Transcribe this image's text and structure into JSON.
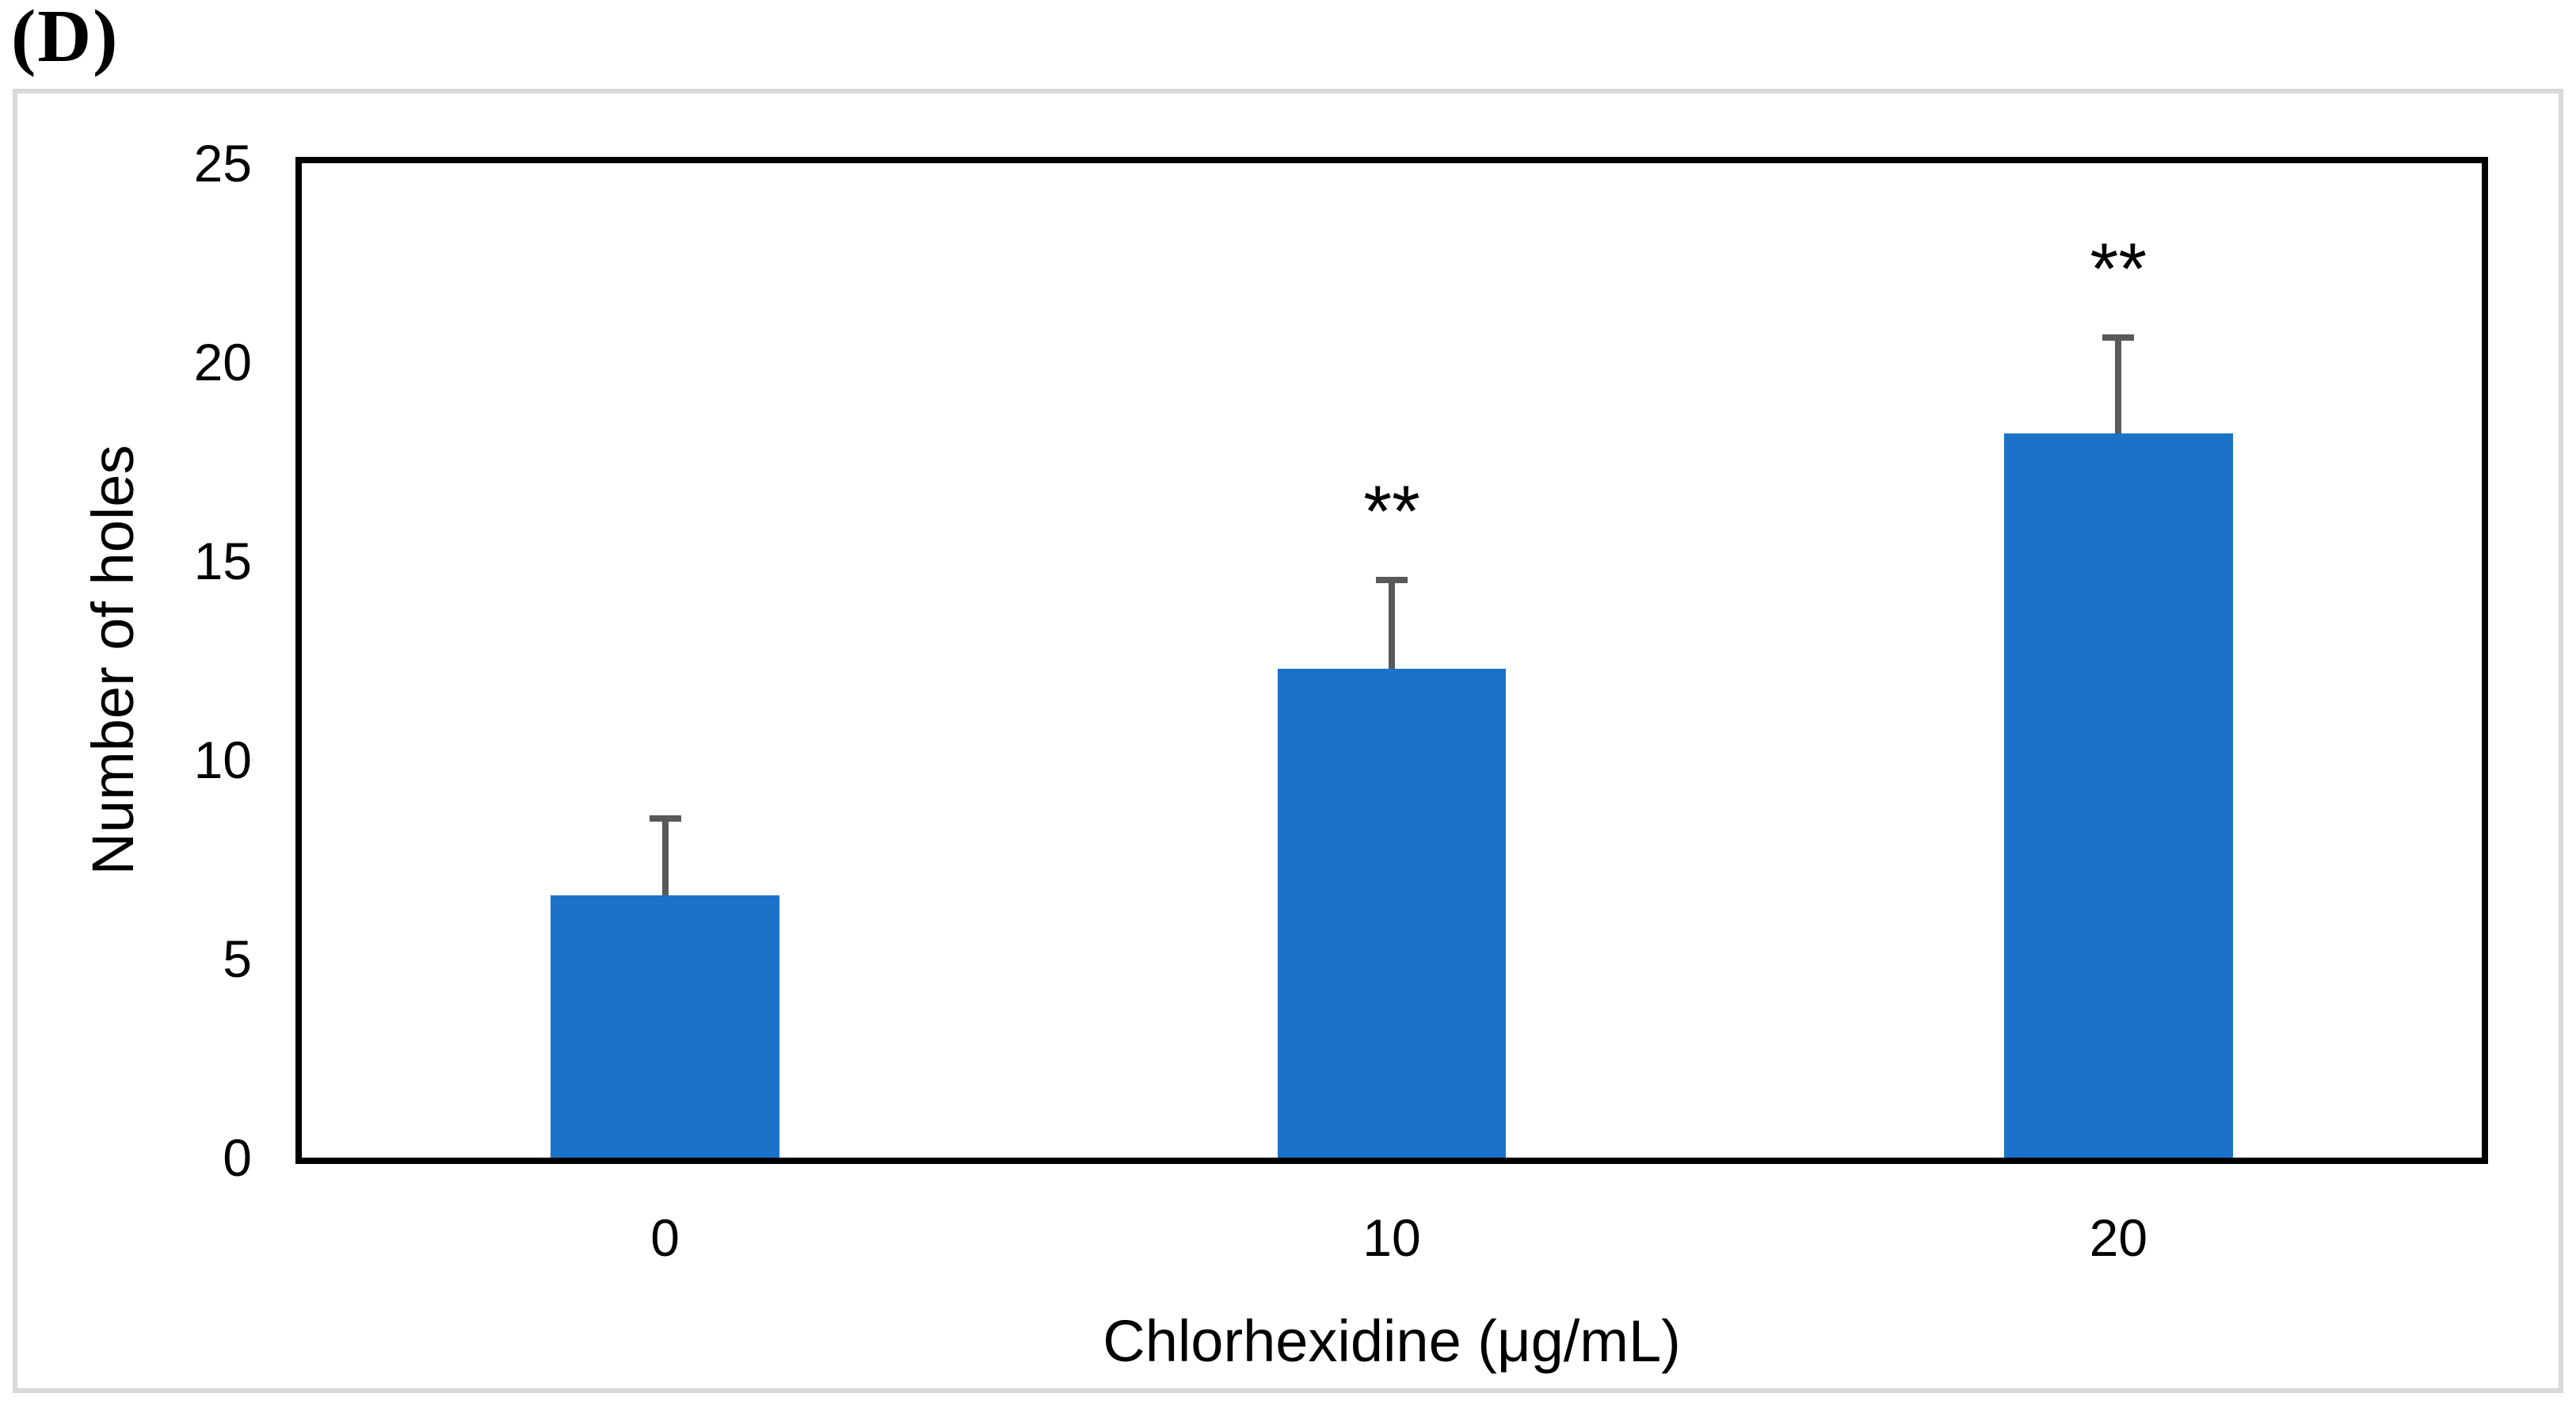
{
  "panel_label": "(D)",
  "chart_data": {
    "type": "bar",
    "title": "",
    "categories": [
      "0",
      "10",
      "20"
    ],
    "values": [
      6.6,
      12.3,
      18.2
    ],
    "error_tops": [
      8.6,
      14.6,
      20.7
    ],
    "significance": [
      "",
      "**",
      "**"
    ],
    "xlabel": "Chlorhexidine (μg/mL)",
    "ylabel": "Number of holes",
    "ylim": [
      0,
      25
    ],
    "yticks": [
      0,
      5,
      10,
      15,
      20,
      25
    ],
    "grid": false,
    "legend": "none",
    "bar_color": "#1A73C8",
    "error_bar_color": "#595959",
    "axis_color": "#000000",
    "frame_color": "#D9D9D9",
    "text_color": "#000000"
  }
}
